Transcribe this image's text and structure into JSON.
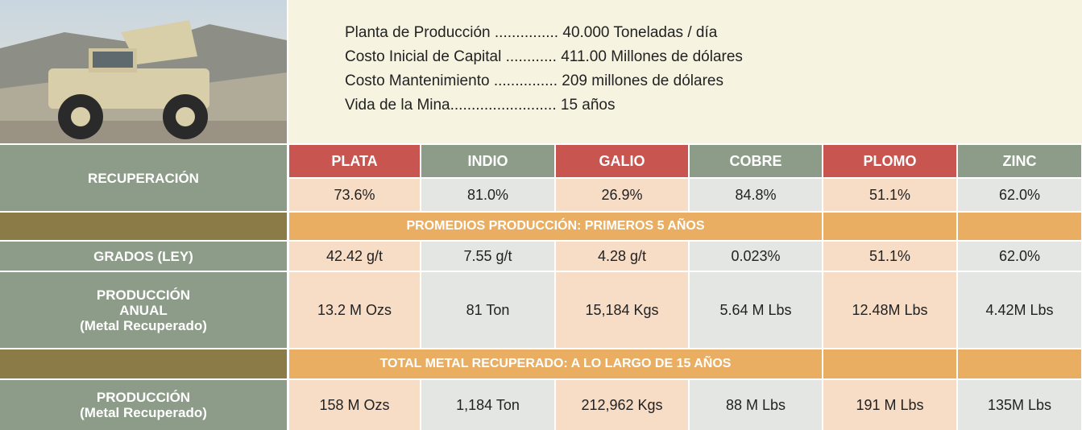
{
  "info": [
    {
      "label": "Planta de Producción ...............",
      "value": "40.000 Toneladas / día"
    },
    {
      "label": "Costo Inicial de Capital ............",
      "value": "411.00 Millones de dólares"
    },
    {
      "label": "Costo Mantenimiento ...............",
      "value": "209 millones de dólares"
    },
    {
      "label": "Vida de la Mina.........................",
      "value": "15 años"
    }
  ],
  "table": {
    "columns": [
      "PLATA",
      "INDIO",
      "GALIO",
      "COBRE",
      "PLOMO",
      "ZINC"
    ],
    "recuperacion": {
      "label": "RECUPERACIÓN",
      "values": [
        "73.6%",
        "81.0%",
        "26.9%",
        "84.8%",
        "51.1%",
        "62.0%"
      ]
    },
    "banner_1": "PROMEDIOS PRODUCCIÓN: PRIMEROS  5 AÑOS",
    "grados": {
      "label": "GRADOS (LEY)",
      "values": [
        "42.42 g/t",
        "7.55 g/t",
        "4.28 g/t",
        "0.023%",
        "51.1%",
        "62.0%"
      ]
    },
    "produccion_anual": {
      "label": [
        "PRODUCCIÓN",
        "ANUAL",
        "(Metal Recuperado)"
      ],
      "values": [
        "13.2 M Ozs",
        "81 Ton",
        "15,184 Kgs",
        "5.64 M Lbs",
        "12.48M Lbs",
        "4.42M Lbs"
      ]
    },
    "banner_2": "TOTAL METAL RECUPERADO: A LO LARGO DE 15 AÑOS",
    "produccion": {
      "label": [
        "PRODUCCIÓN",
        "(Metal Recuperado)"
      ],
      "values": [
        "158 M Ozs",
        "1,184 Ton",
        "212,962 Kgs",
        "88 M Lbs",
        "191 M Lbs",
        "135M Lbs"
      ]
    }
  }
}
